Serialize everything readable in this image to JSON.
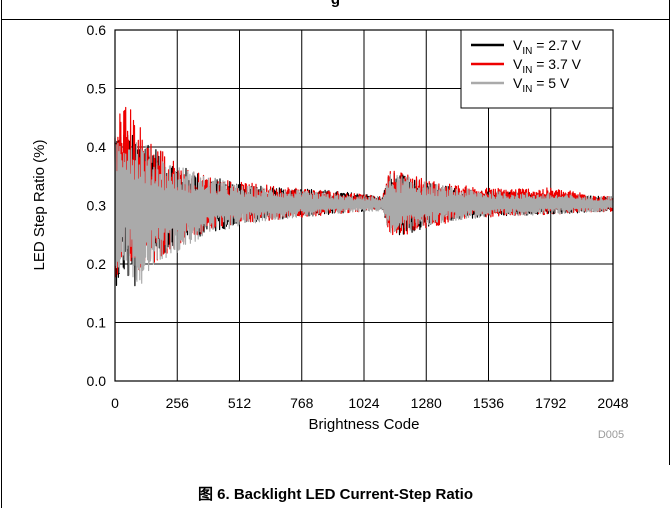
{
  "page": {
    "top_text": "g",
    "caption": "图 6. Backlight LED Current-Step Ratio"
  },
  "chart_data": {
    "type": "line",
    "title": "",
    "xlabel": "Brightness Code",
    "ylabel": "LED Step Ratio (%)",
    "xlim": [
      0,
      2048
    ],
    "ylim": [
      0,
      0.6
    ],
    "x_ticks": [
      "0",
      "256",
      "512",
      "768",
      "1024",
      "1280",
      "1536",
      "1792",
      "2048"
    ],
    "y_ticks": [
      "0.0",
      "0.1",
      "0.2",
      "0.3",
      "0.4",
      "0.5",
      "0.6"
    ],
    "grid": true,
    "legend_position": "top-right",
    "figure_code": "D005",
    "series": [
      {
        "name": "V_IN = 2.7 V",
        "name_main": "V",
        "name_sub": "IN",
        "name_rest": " = 2.7 V",
        "color": "#000000",
        "envelope": [
          {
            "x": 0,
            "min": 0.16,
            "max": 0.44
          },
          {
            "x": 40,
            "min": 0.18,
            "max": 0.43
          },
          {
            "x": 80,
            "min": 0.15,
            "max": 0.42
          },
          {
            "x": 128,
            "min": 0.2,
            "max": 0.42
          },
          {
            "x": 192,
            "min": 0.21,
            "max": 0.39
          },
          {
            "x": 256,
            "min": 0.24,
            "max": 0.37
          },
          {
            "x": 384,
            "min": 0.25,
            "max": 0.35
          },
          {
            "x": 512,
            "min": 0.27,
            "max": 0.34
          },
          {
            "x": 640,
            "min": 0.275,
            "max": 0.33
          },
          {
            "x": 768,
            "min": 0.28,
            "max": 0.33
          },
          {
            "x": 896,
            "min": 0.285,
            "max": 0.325
          },
          {
            "x": 1024,
            "min": 0.29,
            "max": 0.32
          },
          {
            "x": 1100,
            "min": 0.295,
            "max": 0.315
          },
          {
            "x": 1130,
            "min": 0.25,
            "max": 0.36
          },
          {
            "x": 1200,
            "min": 0.25,
            "max": 0.35
          },
          {
            "x": 1280,
            "min": 0.26,
            "max": 0.34
          },
          {
            "x": 1408,
            "min": 0.275,
            "max": 0.33
          },
          {
            "x": 1536,
            "min": 0.28,
            "max": 0.325
          },
          {
            "x": 1792,
            "min": 0.285,
            "max": 0.32
          },
          {
            "x": 2048,
            "min": 0.29,
            "max": 0.315
          }
        ]
      },
      {
        "name": "V_IN = 3.7 V",
        "name_main": "V",
        "name_sub": "IN",
        "name_rest": " = 3.7 V",
        "color": "#ee0000",
        "envelope": [
          {
            "x": 0,
            "min": 0.17,
            "max": 0.43
          },
          {
            "x": 25,
            "min": 0.18,
            "max": 0.48
          },
          {
            "x": 60,
            "min": 0.18,
            "max": 0.47
          },
          {
            "x": 128,
            "min": 0.19,
            "max": 0.42
          },
          {
            "x": 192,
            "min": 0.21,
            "max": 0.4
          },
          {
            "x": 256,
            "min": 0.23,
            "max": 0.37
          },
          {
            "x": 384,
            "min": 0.255,
            "max": 0.35
          },
          {
            "x": 512,
            "min": 0.27,
            "max": 0.34
          },
          {
            "x": 640,
            "min": 0.275,
            "max": 0.335
          },
          {
            "x": 768,
            "min": 0.28,
            "max": 0.33
          },
          {
            "x": 896,
            "min": 0.285,
            "max": 0.325
          },
          {
            "x": 1024,
            "min": 0.29,
            "max": 0.32
          },
          {
            "x": 1100,
            "min": 0.295,
            "max": 0.315
          },
          {
            "x": 1130,
            "min": 0.245,
            "max": 0.36
          },
          {
            "x": 1200,
            "min": 0.25,
            "max": 0.355
          },
          {
            "x": 1280,
            "min": 0.26,
            "max": 0.345
          },
          {
            "x": 1408,
            "min": 0.275,
            "max": 0.335
          },
          {
            "x": 1536,
            "min": 0.28,
            "max": 0.33
          },
          {
            "x": 1792,
            "min": 0.285,
            "max": 0.33
          },
          {
            "x": 2048,
            "min": 0.29,
            "max": 0.315
          }
        ]
      },
      {
        "name": "V_IN = 5 V",
        "name_main": "V",
        "name_sub": "IN",
        "name_rest": " = 5 V",
        "color": "#aaaaaa",
        "envelope": [
          {
            "x": 0,
            "min": 0.18,
            "max": 0.42
          },
          {
            "x": 40,
            "min": 0.19,
            "max": 0.44
          },
          {
            "x": 100,
            "min": 0.16,
            "max": 0.42
          },
          {
            "x": 160,
            "min": 0.2,
            "max": 0.39
          },
          {
            "x": 256,
            "min": 0.22,
            "max": 0.37
          },
          {
            "x": 384,
            "min": 0.25,
            "max": 0.35
          },
          {
            "x": 512,
            "min": 0.265,
            "max": 0.335
          },
          {
            "x": 640,
            "min": 0.275,
            "max": 0.33
          },
          {
            "x": 768,
            "min": 0.28,
            "max": 0.325
          },
          {
            "x": 896,
            "min": 0.285,
            "max": 0.32
          },
          {
            "x": 1024,
            "min": 0.29,
            "max": 0.315
          },
          {
            "x": 1100,
            "min": 0.29,
            "max": 0.315
          },
          {
            "x": 1130,
            "min": 0.25,
            "max": 0.355
          },
          {
            "x": 1200,
            "min": 0.255,
            "max": 0.35
          },
          {
            "x": 1280,
            "min": 0.265,
            "max": 0.34
          },
          {
            "x": 1408,
            "min": 0.275,
            "max": 0.33
          },
          {
            "x": 1536,
            "min": 0.28,
            "max": 0.325
          },
          {
            "x": 1792,
            "min": 0.285,
            "max": 0.32
          },
          {
            "x": 2048,
            "min": 0.29,
            "max": 0.315
          }
        ]
      }
    ]
  }
}
